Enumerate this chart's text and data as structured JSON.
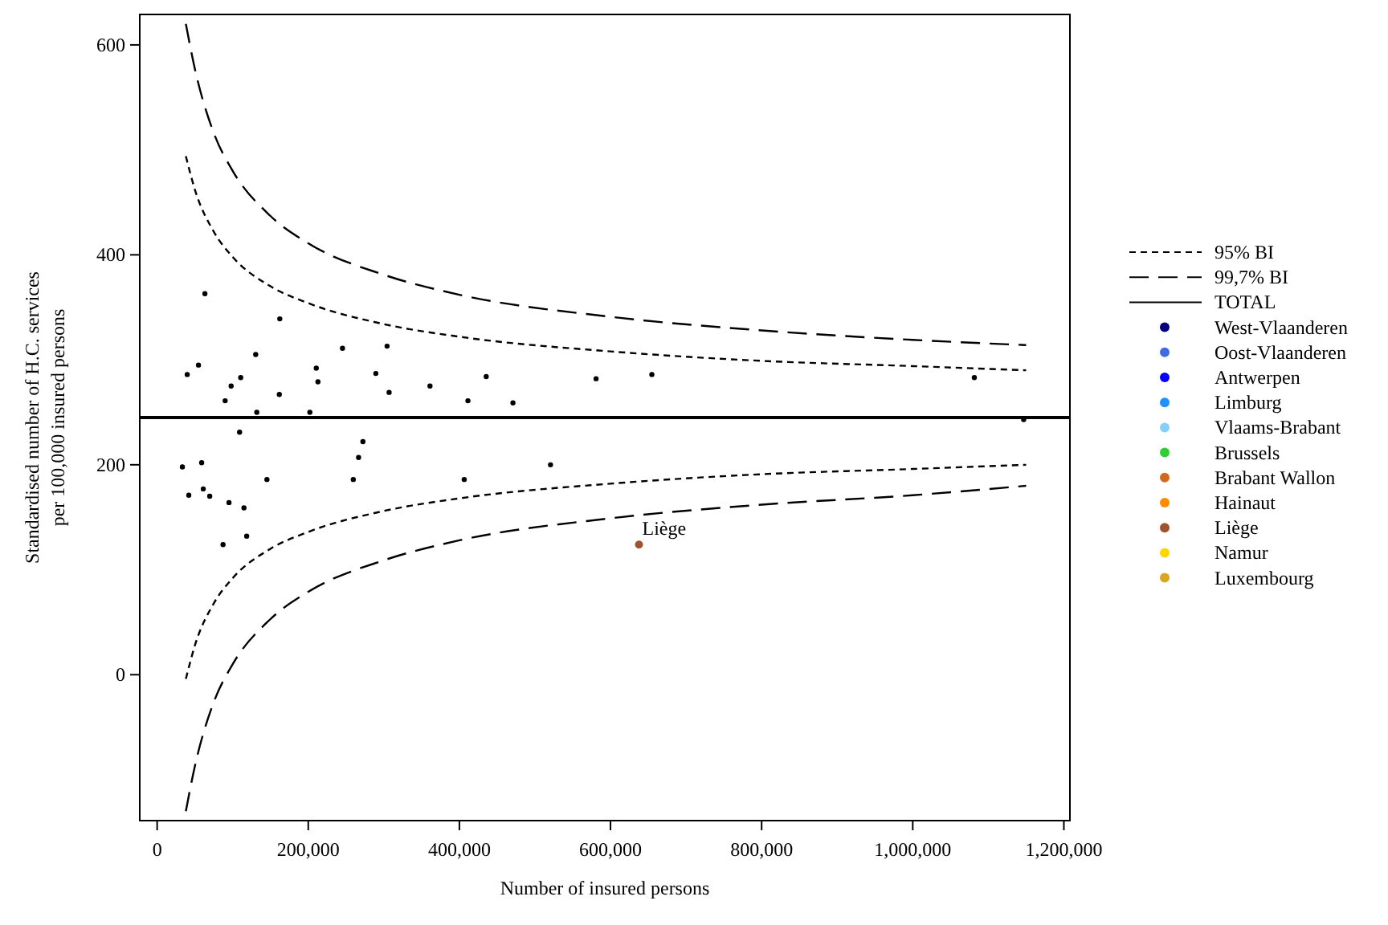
{
  "chart_data": {
    "type": "scatter",
    "xlabel": "Number of insured persons",
    "ylabel": "Standardised number of H.C. services\nper 100,000 insured persons",
    "xlim": [
      -23000,
      1208000
    ],
    "ylim": [
      -139,
      629
    ],
    "xticks": [
      {
        "value": 0,
        "label": "0"
      },
      {
        "value": 200000,
        "label": "200,000"
      },
      {
        "value": 400000,
        "label": "400,000"
      },
      {
        "value": 600000,
        "label": "600,000"
      },
      {
        "value": 800000,
        "label": "800,000"
      },
      {
        "value": 1000000,
        "label": "1,000,000"
      },
      {
        "value": 1200000,
        "label": "1,200,000"
      }
    ],
    "yticks": [
      0,
      200,
      400,
      600
    ],
    "grid": false,
    "legend": "right",
    "ref_lines": [
      {
        "axis": "y",
        "value": 245,
        "label": "TOTAL",
        "color": "#000000",
        "line_style": "solid"
      }
    ],
    "annotations": [
      {
        "text": "Liège",
        "x": 637700,
        "y": 124
      }
    ],
    "series": [
      {
        "name": "95% BI",
        "type": "line",
        "line_style": "dotted",
        "color": "#000000",
        "x": [
          38000,
          50000,
          75000,
          100000,
          150000,
          200000,
          300000,
          400000,
          600000,
          800000,
          1000000,
          1150000
        ],
        "values": [
          494,
          462,
          422,
          398,
          370,
          354,
          334,
          322,
          308,
          299,
          294,
          290
        ]
      },
      {
        "type": "line",
        "line_style": "dotted",
        "color": "#000000",
        "x": [
          38000,
          50000,
          75000,
          100000,
          150000,
          200000,
          300000,
          400000,
          600000,
          800000,
          1000000,
          1150000
        ],
        "values": [
          -4,
          28,
          68,
          92,
          120,
          136,
          156,
          168,
          182,
          191,
          196,
          200
        ]
      },
      {
        "name": "99,7% BI",
        "type": "line",
        "line_style": "dashed",
        "color": "#000000",
        "x": [
          38000,
          50000,
          75000,
          100000,
          150000,
          200000,
          300000,
          400000,
          600000,
          800000,
          1000000,
          1150000
        ],
        "values": [
          620,
          577,
          516,
          480,
          437,
          411,
          381,
          362,
          341,
          328,
          319,
          314
        ]
      },
      {
        "type": "line",
        "line_style": "dashed",
        "color": "#000000",
        "x": [
          38000,
          50000,
          75000,
          100000,
          150000,
          200000,
          300000,
          400000,
          600000,
          800000,
          1000000,
          1150000
        ],
        "values": [
          -130,
          -87,
          -26,
          10,
          53,
          79,
          109,
          128,
          149,
          162,
          171,
          180
        ]
      },
      {
        "marker": "circle",
        "color": "#000000",
        "x": [
          63200,
          162300,
          130400,
          245300,
          304300,
          54700,
          39800,
          210600,
          289400,
          110600,
          212800,
          435500,
          97900,
          361100,
          307000,
          161700,
          90000,
          411300,
          470900,
          131900,
          202100,
          109100,
          272300,
          580900,
          654700,
          1081500,
          1146800,
          33400,
          58900,
          41900,
          61100,
          69600,
          95100,
          114900,
          145300,
          87200,
          118500,
          259600,
          266600,
          406400,
          520600
        ],
        "values": [
          363,
          339,
          305,
          311,
          313,
          295,
          286,
          292,
          287,
          283,
          279,
          284,
          275,
          275,
          269,
          267,
          261,
          261,
          259,
          250,
          250,
          231,
          222,
          282,
          286,
          283,
          243,
          198,
          202,
          171,
          177,
          170,
          164,
          159,
          186,
          124,
          132,
          186,
          207,
          186,
          200
        ]
      },
      {
        "name": "West-Vlaanderen",
        "type": "scatter",
        "marker": "circle",
        "color": "#000080"
      },
      {
        "name": "Oost-Vlaanderen",
        "type": "scatter",
        "marker": "circle",
        "color": "#4169e1"
      },
      {
        "name": "Antwerpen",
        "type": "scatter",
        "marker": "circle",
        "color": "#0000ff"
      },
      {
        "name": "Limburg",
        "type": "scatter",
        "marker": "circle",
        "color": "#1e90ff"
      },
      {
        "name": "Vlaams-Brabant",
        "type": "scatter",
        "marker": "circle",
        "color": "#87cefa"
      },
      {
        "name": "Brussels",
        "type": "scatter",
        "marker": "circle",
        "color": "#32cd32"
      },
      {
        "name": "Brabant Wallon",
        "type": "scatter",
        "marker": "circle",
        "color": "#d2691e"
      },
      {
        "name": "Hainaut",
        "type": "scatter",
        "marker": "circle",
        "color": "#ff8c00"
      },
      {
        "name": "Liège",
        "type": "scatter",
        "marker": "circle",
        "color": "#a0522d",
        "x": [
          637700
        ],
        "values": [
          124
        ]
      },
      {
        "name": "Namur",
        "type": "scatter",
        "marker": "circle",
        "color": "#ffd700"
      },
      {
        "name": "Luxembourg",
        "type": "scatter",
        "marker": "circle",
        "color": "#daa520"
      }
    ]
  }
}
